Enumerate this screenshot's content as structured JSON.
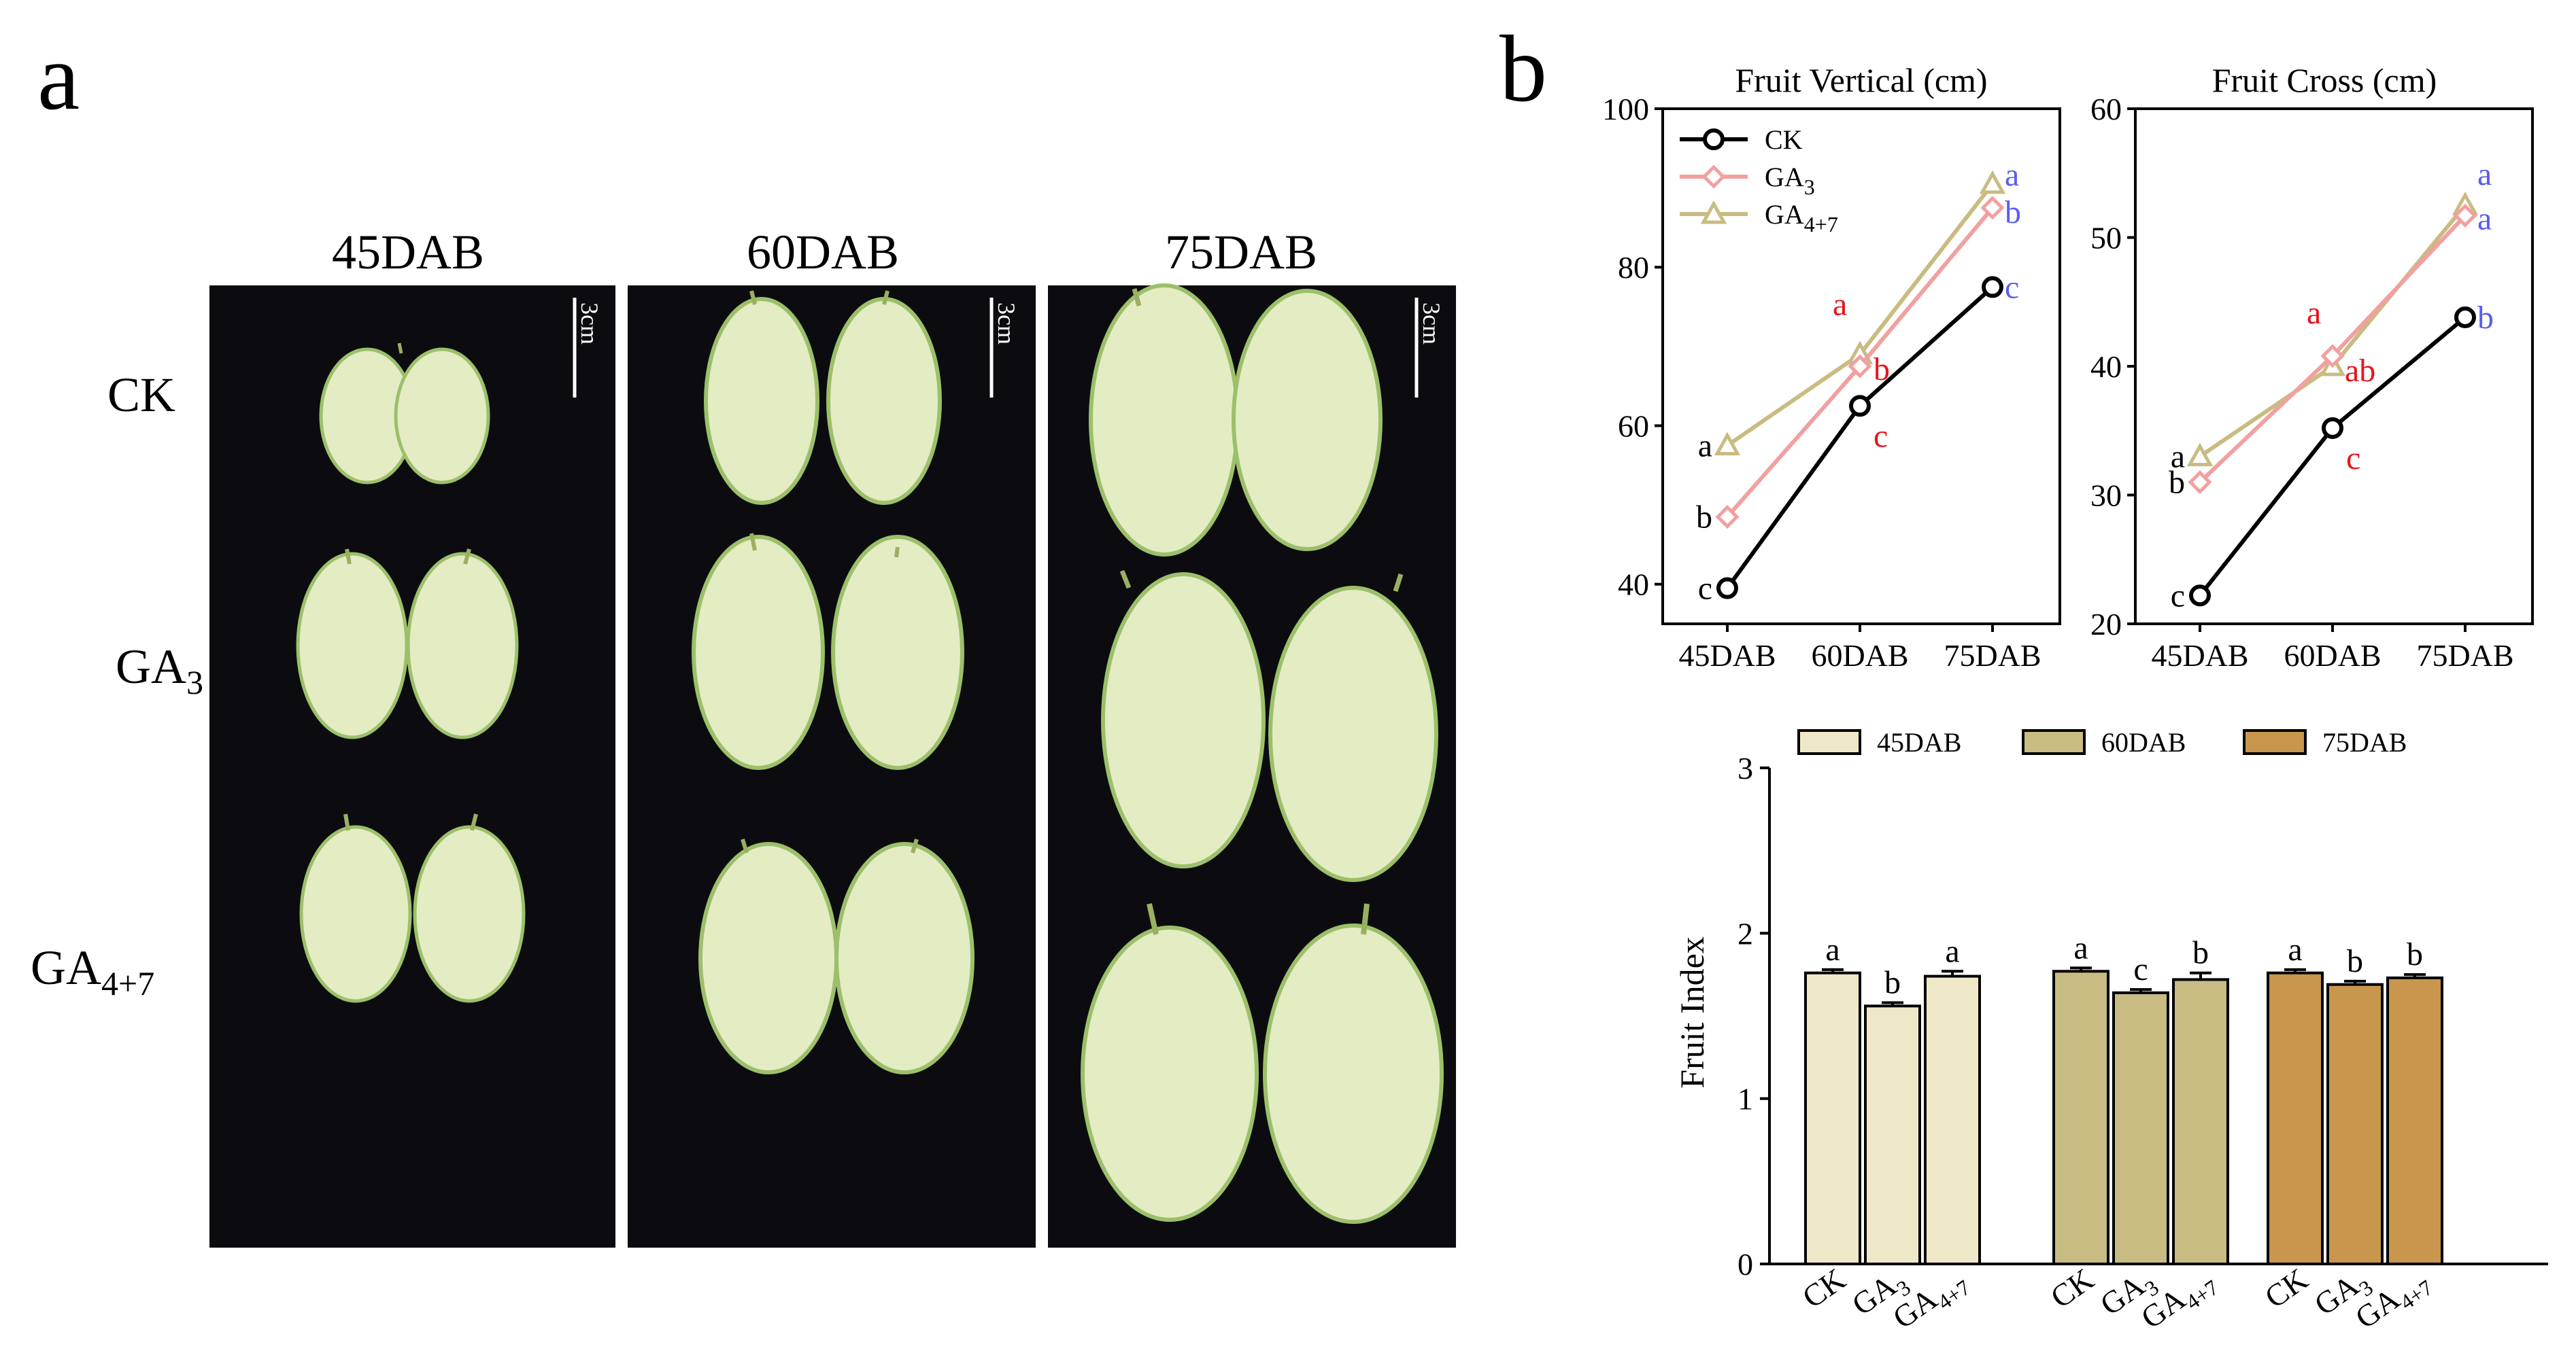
{
  "panel_a": {
    "letter": "a",
    "columns": [
      "45DAB",
      "60DAB",
      "75DAB"
    ],
    "rows": [
      "CK",
      "GA3",
      "GA4+7"
    ],
    "scale_bar_label": "3cm",
    "photo_bg": "#0c0c10",
    "fruit_flesh": "#e4ecc4",
    "fruit_skin": "#9cc06a"
  },
  "panel_b_letter": "b",
  "chart_data": [
    {
      "type": "line",
      "title": "Fruit Vertical (cm)",
      "categories": [
        "45DAB",
        "60DAB",
        "75DAB"
      ],
      "ylim": [
        35,
        100
      ],
      "yticks": [
        40,
        60,
        80,
        100
      ],
      "legend_position": "top-left",
      "series": [
        {
          "name": "CK",
          "values": [
            39.5,
            62.5,
            77.5
          ],
          "color": "#000000",
          "marker": "circle",
          "letters": [
            "c",
            "c",
            "c"
          ],
          "letter_colors": [
            "#000000",
            "#e8141c",
            "#5a5ef0"
          ]
        },
        {
          "name": "GA3",
          "values": [
            48.5,
            67.5,
            87.5
          ],
          "color": "#f2a0a0",
          "marker": "diamond",
          "letters": [
            "b",
            "b",
            "b"
          ],
          "letter_colors": [
            "#000000",
            "#e8141c",
            "#5a5ef0"
          ]
        },
        {
          "name": "GA4+7",
          "values": [
            57.5,
            69.0,
            90.5
          ],
          "color": "#c8bc82",
          "marker": "triangle",
          "letters": [
            "a",
            "a",
            "a"
          ],
          "letter_colors": [
            "#000000",
            "#e8141c",
            "#5a5ef0"
          ]
        }
      ]
    },
    {
      "type": "line",
      "title": "Fruit Cross (cm)",
      "categories": [
        "45DAB",
        "60DAB",
        "75DAB"
      ],
      "ylim": [
        20,
        60
      ],
      "yticks": [
        20,
        30,
        40,
        50,
        60
      ],
      "series": [
        {
          "name": "CK",
          "values": [
            22.2,
            35.2,
            43.8
          ],
          "color": "#000000",
          "marker": "circle",
          "letters": [
            "c",
            "c",
            "b"
          ],
          "letter_colors": [
            "#000000",
            "#e8141c",
            "#5a5ef0"
          ]
        },
        {
          "name": "GA3",
          "values": [
            31.0,
            40.8,
            51.7
          ],
          "color": "#f2a0a0",
          "marker": "diamond",
          "letters": [
            "b",
            "a",
            "a"
          ],
          "letter_colors": [
            "#000000",
            "#e8141c",
            "#5a5ef0"
          ]
        },
        {
          "name": "GA4+7",
          "values": [
            33.0,
            40.0,
            52.5
          ],
          "color": "#c8bc82",
          "marker": "triangle",
          "letters": [
            "a",
            "ab",
            "a"
          ],
          "letter_colors": [
            "#000000",
            "#e8141c",
            "#5a5ef0"
          ]
        }
      ]
    },
    {
      "type": "bar",
      "ylabel": "Fruit Index",
      "ylim": [
        0,
        3
      ],
      "yticks": [
        0,
        1,
        2,
        3
      ],
      "legend_position": "top",
      "groups": [
        {
          "name": "45DAB",
          "color": "#efe8c8",
          "categories": [
            "CK",
            "GA3",
            "GA4+7"
          ],
          "values": [
            1.76,
            1.56,
            1.74
          ],
          "errors": [
            0.02,
            0.02,
            0.03
          ],
          "letters": [
            "a",
            "b",
            "a"
          ]
        },
        {
          "name": "60DAB",
          "color": "#c8bc82",
          "categories": [
            "CK",
            "GA3",
            "GA4+7"
          ],
          "values": [
            1.77,
            1.64,
            1.72
          ],
          "errors": [
            0.02,
            0.02,
            0.04
          ],
          "letters": [
            "a",
            "c",
            "b"
          ]
        },
        {
          "name": "75DAB",
          "color": "#c9964e",
          "categories": [
            "CK",
            "GA3",
            "GA4+7"
          ],
          "values": [
            1.76,
            1.69,
            1.73
          ],
          "errors": [
            0.02,
            0.02,
            0.02
          ],
          "letters": [
            "a",
            "b",
            "b"
          ]
        }
      ]
    }
  ]
}
